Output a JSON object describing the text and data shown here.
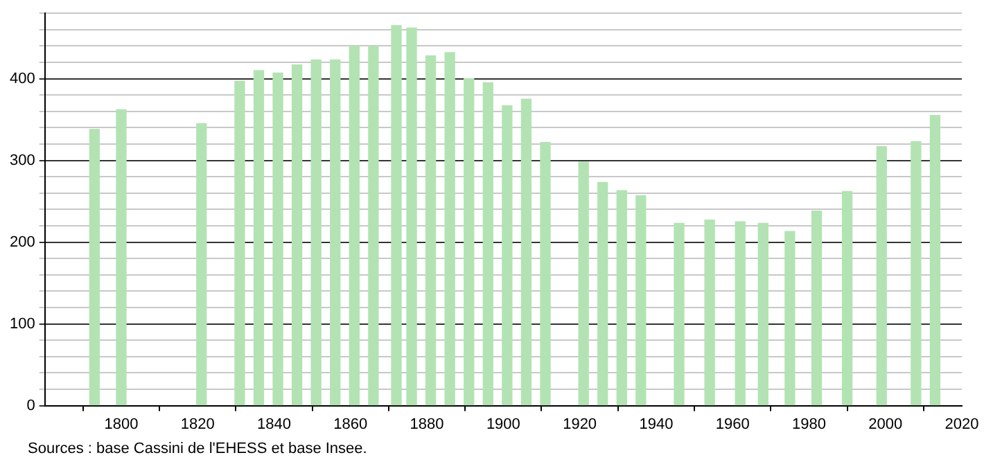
{
  "chart_data": {
    "type": "bar",
    "color": "#b3e3b3",
    "x": [
      1793,
      1800,
      1821,
      1831,
      1836,
      1841,
      1846,
      1851,
      1856,
      1861,
      1866,
      1872,
      1876,
      1881,
      1886,
      1891,
      1896,
      1901,
      1906,
      1911,
      1921,
      1926,
      1931,
      1936,
      1946,
      1954,
      1962,
      1968,
      1975,
      1982,
      1990,
      1999,
      2008,
      2013
    ],
    "values": [
      338,
      362,
      345,
      397,
      410,
      407,
      417,
      423,
      423,
      440,
      440,
      465,
      462,
      428,
      432,
      400,
      395,
      367,
      375,
      322,
      298,
      273,
      263,
      257,
      223,
      227,
      225,
      223,
      213,
      238,
      262,
      317,
      323,
      355
    ],
    "xlim": [
      1780,
      2020
    ],
    "xticks": [
      1800,
      1820,
      1840,
      1860,
      1880,
      1900,
      1920,
      1940,
      1960,
      1980,
      2000,
      2020
    ],
    "ylim": [
      0,
      480
    ],
    "yticks": [
      0,
      {
        "value": 20,
        "label": null
      },
      {
        "value": 40,
        "label": null
      },
      {
        "value": 60,
        "label": null
      },
      {
        "value": 80,
        "label": null
      },
      100,
      {
        "value": 120,
        "label": null
      },
      {
        "value": 140,
        "label": null
      },
      {
        "value": 160,
        "label": null
      },
      {
        "value": 180,
        "label": null
      },
      200,
      {
        "value": 220,
        "label": null
      },
      {
        "value": 240,
        "label": null
      },
      {
        "value": 260,
        "label": null
      },
      {
        "value": 280,
        "label": null
      },
      300,
      {
        "value": 320,
        "label": null
      },
      {
        "value": 340,
        "label": null
      },
      {
        "value": 360,
        "label": null
      },
      {
        "value": 380,
        "label": null
      },
      400,
      {
        "value": 420,
        "label": null
      },
      {
        "value": 440,
        "label": null
      },
      {
        "value": 460,
        "label": null
      },
      {
        "value": 480,
        "label": null
      }
    ],
    "grid": "y",
    "annotations": [
      "Sources : base Cassini de l'EHESS et base Insee."
    ]
  }
}
